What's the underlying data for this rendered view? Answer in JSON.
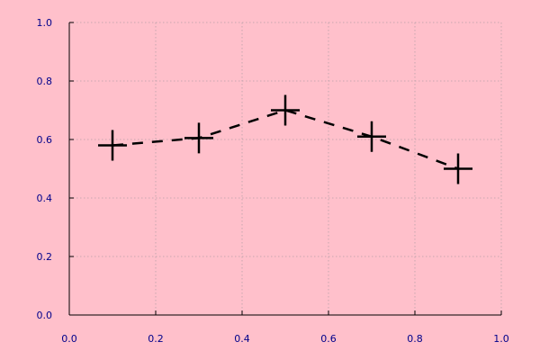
{
  "colors": {
    "background": "#ffc0cb",
    "axis": "#000000",
    "grid": "#b8a0a8",
    "tick_label": "#00008b",
    "series_line": "#000000",
    "marker": "#000000"
  },
  "chart_data": {
    "type": "line",
    "title": "",
    "xlabel": "",
    "ylabel": "",
    "xlim": [
      0.0,
      1.0
    ],
    "ylim": [
      0.0,
      1.0
    ],
    "grid": true,
    "grid_style": "dotted",
    "x_ticks": [
      "0.0",
      "0.2",
      "0.4",
      "0.6",
      "0.8",
      "1.0"
    ],
    "y_ticks": [
      "0.0",
      "0.2",
      "0.4",
      "0.6",
      "0.8",
      "1.0"
    ],
    "x_tick_values": [
      0.0,
      0.2,
      0.4,
      0.6,
      0.8,
      1.0
    ],
    "y_tick_values": [
      0.0,
      0.2,
      0.4,
      0.6,
      0.8,
      1.0
    ],
    "series": [
      {
        "line_style": "dashed",
        "marker": "plus",
        "x": [
          0.1,
          0.3,
          0.5,
          0.7,
          0.9
        ],
        "y": [
          0.58,
          0.605,
          0.7,
          0.61,
          0.5
        ]
      }
    ]
  }
}
